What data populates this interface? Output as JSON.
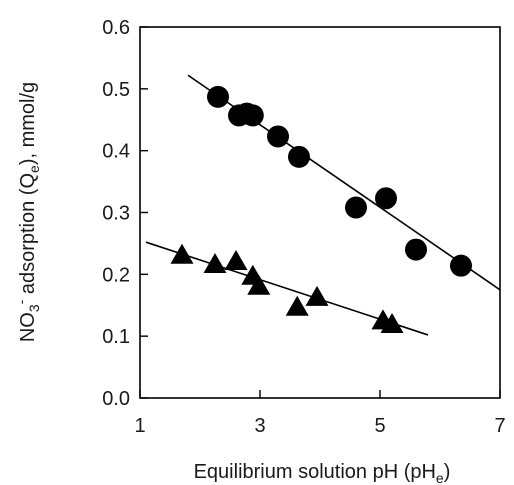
{
  "chart_data": {
    "type": "scatter",
    "xlabel": {
      "main": "Equilibrium solution pH (pH",
      "sub": "e",
      "tail": ")"
    },
    "ylabel": {
      "p1": "NO",
      "sub1": "3",
      "sup1": "-",
      "p2": "  adsorption (Q",
      "sub2": "e",
      "p3": "), mmol/g"
    },
    "xlim": [
      1,
      7
    ],
    "ylim": [
      0,
      0.6
    ],
    "xticks": [
      "1",
      "3",
      "5",
      "7"
    ],
    "yticks": [
      "0.0",
      "0.1",
      "0.2",
      "0.3",
      "0.4",
      "0.5",
      "0.6"
    ],
    "grid": false,
    "series": [
      {
        "marker": "circle",
        "color": "#000000",
        "x": [
          2.3,
          2.65,
          2.78,
          2.88,
          3.3,
          3.65,
          4.6,
          5.1,
          5.6,
          6.35
        ],
        "y": [
          0.487,
          0.457,
          0.46,
          0.457,
          0.423,
          0.39,
          0.308,
          0.323,
          0.24,
          0.214
        ],
        "fit": {
          "x": [
            1.8,
            7.0
          ],
          "y": [
            0.522,
            0.175
          ]
        }
      },
      {
        "marker": "triangle",
        "color": "#000000",
        "x": [
          1.7,
          2.25,
          2.6,
          2.88,
          2.98,
          3.62,
          3.95,
          5.05,
          5.2
        ],
        "y": [
          0.23,
          0.215,
          0.22,
          0.196,
          0.18,
          0.146,
          0.162,
          0.124,
          0.118
        ],
        "fit": {
          "x": [
            1.1,
            5.8
          ],
          "y": [
            0.252,
            0.102
          ]
        }
      }
    ]
  }
}
